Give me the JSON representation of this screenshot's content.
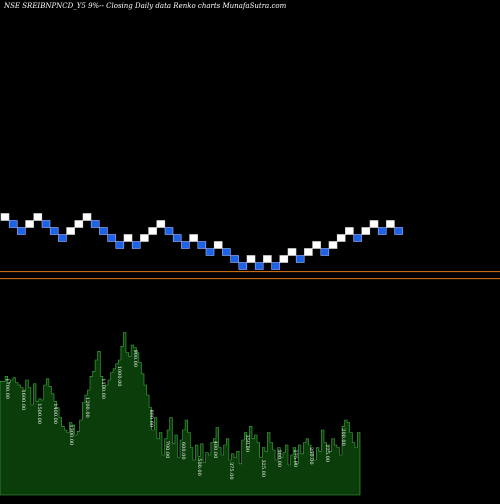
{
  "chart_data": {
    "type": "renko",
    "title": "NSE SREIBNPNCD_Y5 9%-- Closing Daily data Renko charts MunafaSutra.com",
    "colors": {
      "background": "#000000",
      "brick_up": "#ffffff",
      "brick_down": "#1e63e6",
      "brick_down_edge": "#9fb8ff",
      "reference_line": "#e2791c",
      "volume_fill": "#0b3d0b",
      "volume_edge": "#3fae3f",
      "volume_label": "#ffffff"
    },
    "bricks": [
      {
        "dir": "up",
        "level": 0
      },
      {
        "dir": "down",
        "level": -1
      },
      {
        "dir": "down",
        "level": -2
      },
      {
        "dir": "up",
        "level": -1
      },
      {
        "dir": "up",
        "level": 0
      },
      {
        "dir": "down",
        "level": -1
      },
      {
        "dir": "down",
        "level": -2
      },
      {
        "dir": "down",
        "level": -3
      },
      {
        "dir": "up",
        "level": -2
      },
      {
        "dir": "up",
        "level": -1
      },
      {
        "dir": "up",
        "level": 0
      },
      {
        "dir": "down",
        "level": -1
      },
      {
        "dir": "down",
        "level": -2
      },
      {
        "dir": "down",
        "level": -3
      },
      {
        "dir": "down",
        "level": -4
      },
      {
        "dir": "up",
        "level": -3
      },
      {
        "dir": "down",
        "level": -4
      },
      {
        "dir": "up",
        "level": -3
      },
      {
        "dir": "up",
        "level": -2
      },
      {
        "dir": "up",
        "level": -1
      },
      {
        "dir": "down",
        "level": -2
      },
      {
        "dir": "down",
        "level": -3
      },
      {
        "dir": "down",
        "level": -4
      },
      {
        "dir": "up",
        "level": -3
      },
      {
        "dir": "down",
        "level": -4
      },
      {
        "dir": "down",
        "level": -5
      },
      {
        "dir": "up",
        "level": -4
      },
      {
        "dir": "down",
        "level": -5
      },
      {
        "dir": "down",
        "level": -6
      },
      {
        "dir": "down",
        "level": -7
      },
      {
        "dir": "up",
        "level": -6
      },
      {
        "dir": "down",
        "level": -7
      },
      {
        "dir": "up",
        "level": -6
      },
      {
        "dir": "down",
        "level": -7
      },
      {
        "dir": "up",
        "level": -6
      },
      {
        "dir": "up",
        "level": -5
      },
      {
        "dir": "down",
        "level": -6
      },
      {
        "dir": "up",
        "level": -5
      },
      {
        "dir": "up",
        "level": -4
      },
      {
        "dir": "down",
        "level": -5
      },
      {
        "dir": "up",
        "level": -4
      },
      {
        "dir": "up",
        "level": -3
      },
      {
        "dir": "up",
        "level": -2
      },
      {
        "dir": "down",
        "level": -3
      },
      {
        "dir": "up",
        "level": -2
      },
      {
        "dir": "up",
        "level": -1
      },
      {
        "dir": "down",
        "level": -2
      },
      {
        "dir": "up",
        "level": -1
      },
      {
        "dir": "down",
        "level": -2
      }
    ],
    "reference_lines": [
      {
        "name": "upper",
        "level": -7.8
      },
      {
        "name": "lower",
        "level": -8.8
      }
    ],
    "volume_labels": [
      "1700.00",
      "1600.00",
      "1500.00",
      "1400.00",
      "1300.00",
      "1200.00",
      "1100.00",
      "1000.00",
      "900.00",
      "800.00",
      "700.00",
      "600.00",
      "500.00",
      "400.00",
      "375.00",
      "350.00",
      "325.00",
      "300.00",
      "275.00",
      "250.00",
      "225.00",
      "200.00"
    ],
    "volume": [
      91,
      91,
      95,
      90,
      92,
      94,
      90,
      88,
      86,
      84,
      92,
      86,
      72,
      89,
      75,
      77,
      76,
      88,
      93,
      87,
      81,
      75,
      70,
      62,
      55,
      52,
      50,
      58,
      56,
      48,
      51,
      60,
      74,
      80,
      84,
      95,
      99,
      108,
      115,
      95,
      86,
      88,
      92,
      98,
      101,
      105,
      108,
      119,
      130,
      114,
      111,
      120,
      118,
      114,
      106,
      97,
      88,
      80,
      70,
      52,
      62,
      45,
      50,
      32,
      45,
      52,
      62,
      41,
      48,
      30,
      44,
      52,
      60,
      50,
      38,
      28,
      40,
      31,
      41,
      26,
      34,
      32,
      42,
      45,
      54,
      38,
      32,
      40,
      45,
      28,
      33,
      30,
      35,
      25,
      44,
      50,
      38,
      55,
      45,
      48,
      42,
      30,
      38,
      35,
      50,
      42,
      36,
      28,
      38,
      30,
      34,
      40,
      24,
      32,
      38,
      25,
      40,
      33,
      42,
      45,
      40,
      34,
      28,
      38,
      35,
      52,
      42,
      40,
      35,
      45,
      40,
      38,
      32,
      55,
      60,
      58,
      50,
      42,
      38,
      50
    ]
  }
}
